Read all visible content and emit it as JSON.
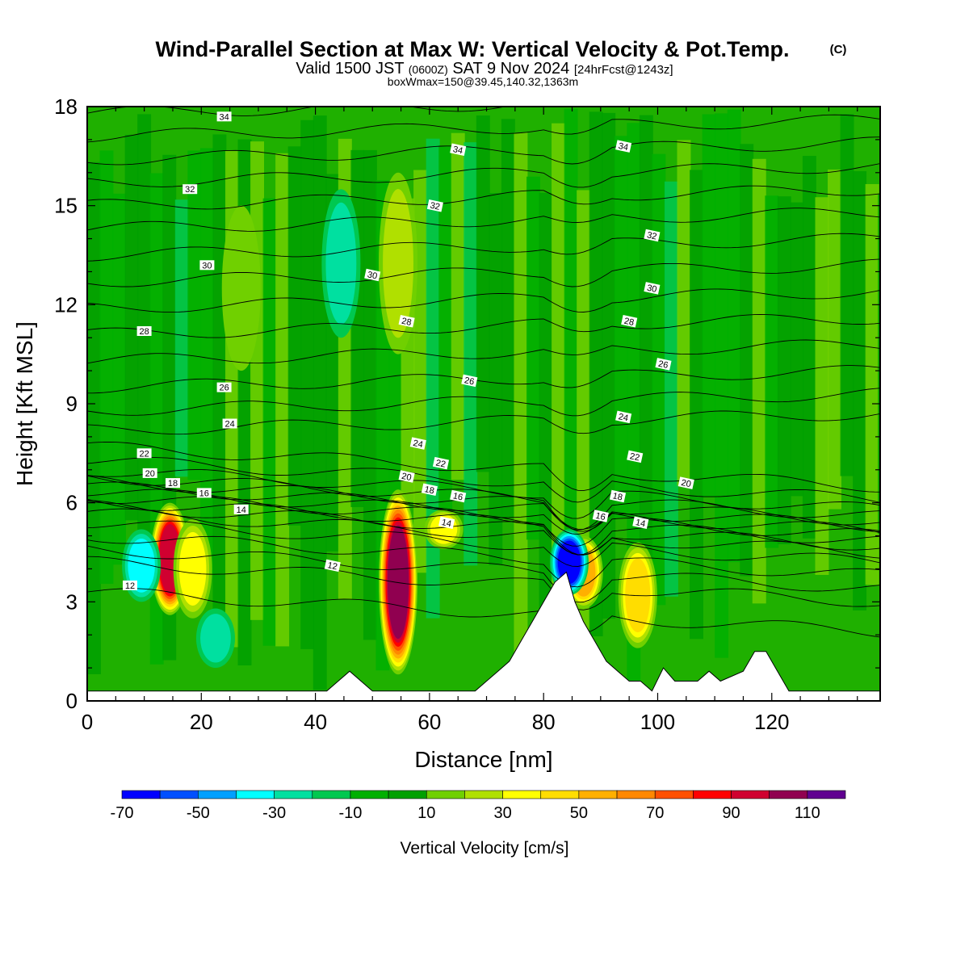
{
  "header": {
    "title": "Wind-Parallel Section at Max W: Vertical Velocity & Pot.Temp.",
    "title_mark": "(C)",
    "subtitle_a": "Valid 1500 JST",
    "subtitle_b": "(0600Z)",
    "subtitle_c": "SAT 9 Nov 2024",
    "subtitle_d": "[24hrFcst@1243z]",
    "subtitle2": "boxWmax=150@39.45,140.32,1363m"
  },
  "chart_data": {
    "type": "heatmap",
    "xlabel": "Distance [nm]",
    "ylabel": "Height [Kft MSL]",
    "xlim": [
      0,
      139
    ],
    "ylim": [
      0,
      18
    ],
    "xticks": [
      "0",
      "20",
      "40",
      "60",
      "80",
      "100",
      "120"
    ],
    "yticks": [
      "0",
      "3",
      "6",
      "9",
      "12",
      "15",
      "18"
    ],
    "colorbar": {
      "label": "Vertical Velocity [cm/s]",
      "tick_labels": [
        "-70",
        "-50",
        "-30",
        "-10",
        "10",
        "30",
        "50",
        "70",
        "90",
        "110"
      ],
      "levels": [
        -70,
        -60,
        -50,
        -40,
        -30,
        -20,
        -10,
        0,
        10,
        20,
        30,
        40,
        50,
        60,
        70,
        80,
        90,
        100,
        110,
        120
      ],
      "colors": [
        "#0000ff",
        "#0050ff",
        "#00a0ff",
        "#00ffff",
        "#00e0a0",
        "#00c850",
        "#00b000",
        "#00a000",
        "#70d000",
        "#b0e000",
        "#ffff00",
        "#ffdd00",
        "#ffb000",
        "#ff8800",
        "#ff5000",
        "#ff0000",
        "#d00030",
        "#900050",
        "#600090"
      ]
    },
    "background_range_cm_s": [
      -10,
      10
    ],
    "updrafts": [
      {
        "x": 14.5,
        "y_top": 6.0,
        "y_bottom": 2.6,
        "w_max": 95
      },
      {
        "x": 18.5,
        "y_top": 5.5,
        "y_bottom": 2.5,
        "w_max": 35
      },
      {
        "x": 54.5,
        "y_top": 6.4,
        "y_bottom": 0.8,
        "w_max": 105
      },
      {
        "x": 62.5,
        "y_top": 5.8,
        "y_bottom": 4.6,
        "w_max": 35
      },
      {
        "x": 87,
        "y_top": 5.0,
        "y_bottom": 2.8,
        "w_max": 60
      },
      {
        "x": 96.5,
        "y_top": 4.8,
        "y_bottom": 1.6,
        "w_max": 45
      },
      {
        "x": 54.5,
        "y_top": 16.0,
        "y_bottom": 10.5,
        "w_max": 30
      },
      {
        "x": 27,
        "y_top": 15.0,
        "y_bottom": 10.0,
        "w_max": 18
      }
    ],
    "downdrafts": [
      {
        "x": 9.5,
        "y_top": 5.2,
        "y_bottom": 3.0,
        "w_min": -35
      },
      {
        "x": 84.5,
        "y_top": 5.2,
        "y_bottom": 3.2,
        "w_min": -65
      },
      {
        "x": 44.5,
        "y_top": 15.5,
        "y_bottom": 11.0,
        "w_min": -25
      },
      {
        "x": 22.5,
        "y_top": 2.8,
        "y_bottom": 1.0,
        "w_min": -25
      }
    ],
    "terrain_kft": [
      [
        0,
        0.3
      ],
      [
        42,
        0.3
      ],
      [
        44,
        0.6
      ],
      [
        46,
        0.9
      ],
      [
        48,
        0.6
      ],
      [
        50,
        0.3
      ],
      [
        60,
        0.3
      ],
      [
        68,
        0.3
      ],
      [
        70,
        0.6
      ],
      [
        72,
        0.9
      ],
      [
        74,
        1.2
      ],
      [
        76,
        1.8
      ],
      [
        78,
        2.4
      ],
      [
        80,
        3.0
      ],
      [
        82,
        3.6
      ],
      [
        84,
        3.9
      ],
      [
        85.5,
        3.0
      ],
      [
        87,
        2.4
      ],
      [
        89,
        1.8
      ],
      [
        91,
        1.2
      ],
      [
        93,
        0.9
      ],
      [
        95,
        0.6
      ],
      [
        97,
        0.6
      ],
      [
        99,
        0.3
      ],
      [
        101,
        1.0
      ],
      [
        103,
        0.6
      ],
      [
        107,
        0.6
      ],
      [
        109,
        0.9
      ],
      [
        111,
        0.6
      ],
      [
        115,
        0.9
      ],
      [
        117,
        1.5
      ],
      [
        119,
        1.5
      ],
      [
        121,
        0.9
      ],
      [
        123,
        0.3
      ],
      [
        139,
        0.3
      ]
    ],
    "theta_labels": [
      {
        "text": "34",
        "x": 24,
        "y": 17.7
      },
      {
        "text": "34",
        "x": 65,
        "y": 16.7
      },
      {
        "text": "34",
        "x": 94,
        "y": 16.8
      },
      {
        "text": "32",
        "x": 18,
        "y": 15.5
      },
      {
        "text": "32",
        "x": 61,
        "y": 15.0
      },
      {
        "text": "32",
        "x": 99,
        "y": 14.1
      },
      {
        "text": "30",
        "x": 21,
        "y": 13.2
      },
      {
        "text": "30",
        "x": 50,
        "y": 12.9
      },
      {
        "text": "30",
        "x": 99,
        "y": 12.5
      },
      {
        "text": "28",
        "x": 10,
        "y": 11.2
      },
      {
        "text": "28",
        "x": 56,
        "y": 11.5
      },
      {
        "text": "28",
        "x": 95,
        "y": 11.5
      },
      {
        "text": "26",
        "x": 24,
        "y": 9.5
      },
      {
        "text": "26",
        "x": 67,
        "y": 9.7
      },
      {
        "text": "26",
        "x": 101,
        "y": 10.2
      },
      {
        "text": "24",
        "x": 25,
        "y": 8.4
      },
      {
        "text": "24",
        "x": 58,
        "y": 7.8
      },
      {
        "text": "24",
        "x": 94,
        "y": 8.6
      },
      {
        "text": "22",
        "x": 10,
        "y": 7.5
      },
      {
        "text": "22",
        "x": 62,
        "y": 7.2
      },
      {
        "text": "22",
        "x": 96,
        "y": 7.4
      },
      {
        "text": "20",
        "x": 11,
        "y": 6.9
      },
      {
        "text": "20",
        "x": 56,
        "y": 6.8
      },
      {
        "text": "20",
        "x": 105,
        "y": 6.6
      },
      {
        "text": "18",
        "x": 15,
        "y": 6.6
      },
      {
        "text": "18",
        "x": 60,
        "y": 6.4
      },
      {
        "text": "18",
        "x": 93,
        "y": 6.2
      },
      {
        "text": "16",
        "x": 20.5,
        "y": 6.3
      },
      {
        "text": "16",
        "x": 65,
        "y": 6.2
      },
      {
        "text": "16",
        "x": 90,
        "y": 5.6
      },
      {
        "text": "14",
        "x": 27,
        "y": 5.8
      },
      {
        "text": "14",
        "x": 63,
        "y": 5.4
      },
      {
        "text": "14",
        "x": 97,
        "y": 5.4
      },
      {
        "text": "12",
        "x": 7.5,
        "y": 3.5
      },
      {
        "text": "12",
        "x": 43,
        "y": 4.1
      }
    ]
  }
}
